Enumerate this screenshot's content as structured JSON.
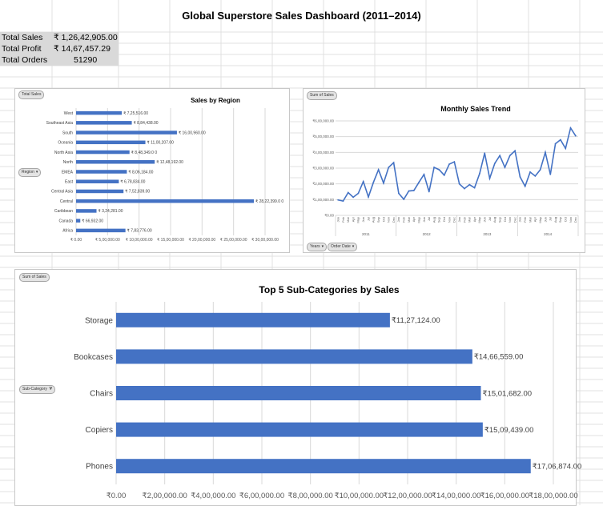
{
  "dashboard": {
    "title": "Global Superstore Sales Dashboard (2011–2014)"
  },
  "kpis": [
    {
      "label": "Total Sales",
      "value": "₹ 1,26,42,905.00"
    },
    {
      "label": "Total Profit",
      "value": "₹ 14,67,457.29"
    },
    {
      "label": "Total Orders",
      "value": "51290"
    }
  ],
  "filters": {
    "region_values": "Total Sales",
    "region_axis": "Region",
    "trend_values": "Sum of Sales",
    "trend_years": "Years",
    "trend_order_date": "Order Date",
    "subcat_values": "Sum of Sales",
    "subcat_axis": "Sub-Category"
  },
  "icons": {
    "dropdown": "dropdown-arrow-icon",
    "filter": "filter-funnel-icon"
  },
  "colors": {
    "bar": "#4472c4",
    "line": "#4472c4",
    "kpi_bg": "#d9d9d9"
  },
  "chart_data": [
    {
      "id": "region",
      "type": "bar",
      "orientation": "horizontal",
      "title": "Sales by Region",
      "categories": [
        "West",
        "Southeast Asia",
        "South",
        "Oceania",
        "North Asia",
        "North",
        "EMEA",
        "East",
        "Central Asia",
        "Central",
        "Caribbean",
        "Canada",
        "Africa"
      ],
      "values": [
        725516,
        884438,
        1600960,
        1100207,
        848349,
        1248192,
        806184,
        678834,
        752839,
        2822399,
        324281,
        66932,
        783776
      ],
      "data_labels": [
        "₹ 7,25,516.00",
        "₹ 8,84,438.00",
        "₹ 16,00,960.00",
        "₹ 11,00,207.00",
        "₹ 8,48,349.0 0",
        "₹ 12,48,192.00",
        "₹ 8,06,184.00",
        "₹ 6,78,834.00",
        "₹ 7,52,839.00",
        "₹ 28,22,399.0 0",
        "₹ 3,24,281.00",
        "₹ 66,932.00",
        "₹ 7,83,776.00"
      ],
      "xlim": [
        0,
        3000000
      ],
      "xticks": [
        "₹ 0.00",
        "₹ 5,00,000.00",
        "₹ 10,00,000.00",
        "₹ 15,00,000.00",
        "₹ 20,00,000.00",
        "₹ 25,00,000.00",
        "₹ 30,00,000.00"
      ],
      "grid": true
    },
    {
      "id": "trend",
      "type": "line",
      "title": "Monthly Sales Trend",
      "years": [
        "2011",
        "2012",
        "2013",
        "2014"
      ],
      "months": [
        "Jan",
        "Feb",
        "Mar",
        "Apr",
        "May",
        "Jun",
        "Jul",
        "Aug",
        "Sep",
        "Oct",
        "Nov",
        "Dec"
      ],
      "values": [
        98000,
        91000,
        145000,
        115000,
        140000,
        215000,
        117000,
        210000,
        290000,
        205000,
        305000,
        335000,
        140000,
        102000,
        155000,
        158000,
        210000,
        260000,
        150000,
        305000,
        290000,
        255000,
        325000,
        340000,
        200000,
        170000,
        195000,
        175000,
        265000,
        395000,
        235000,
        330000,
        380000,
        305000,
        380000,
        410000,
        245000,
        185000,
        275000,
        250000,
        290000,
        400000,
        260000,
        455000,
        480000,
        425000,
        555000,
        505000
      ],
      "ylim": [
        0,
        600000
      ],
      "yticks": [
        "₹0.00",
        "₹1,00,000.00",
        "₹2,00,000.00",
        "₹3,00,000.00",
        "₹4,00,000.00",
        "₹5,00,000.00",
        "₹6,00,000.00"
      ],
      "grid": true
    },
    {
      "id": "subcat",
      "type": "bar",
      "orientation": "horizontal",
      "title": "Top 5 Sub-Categories by Sales",
      "categories": [
        "Storage",
        "Bookcases",
        "Chairs",
        "Copiers",
        "Phones"
      ],
      "values": [
        1127124,
        1466559,
        1501682,
        1509439,
        1706874
      ],
      "data_labels": [
        "₹11,27,124.00",
        "₹14,66,559.00",
        "₹15,01,682.00",
        "₹15,09,439.00",
        "₹17,06,874.00"
      ],
      "xlim": [
        0,
        1800000
      ],
      "xticks": [
        "₹0.00",
        "₹2,00,000.00",
        "₹4,00,000.00",
        "₹6,00,000.00",
        "₹8,00,000.00",
        "₹10,00,000.00",
        "₹12,00,000.00",
        "₹14,00,000.00",
        "₹16,00,000.00",
        "₹18,00,000.00"
      ],
      "grid": true
    }
  ]
}
